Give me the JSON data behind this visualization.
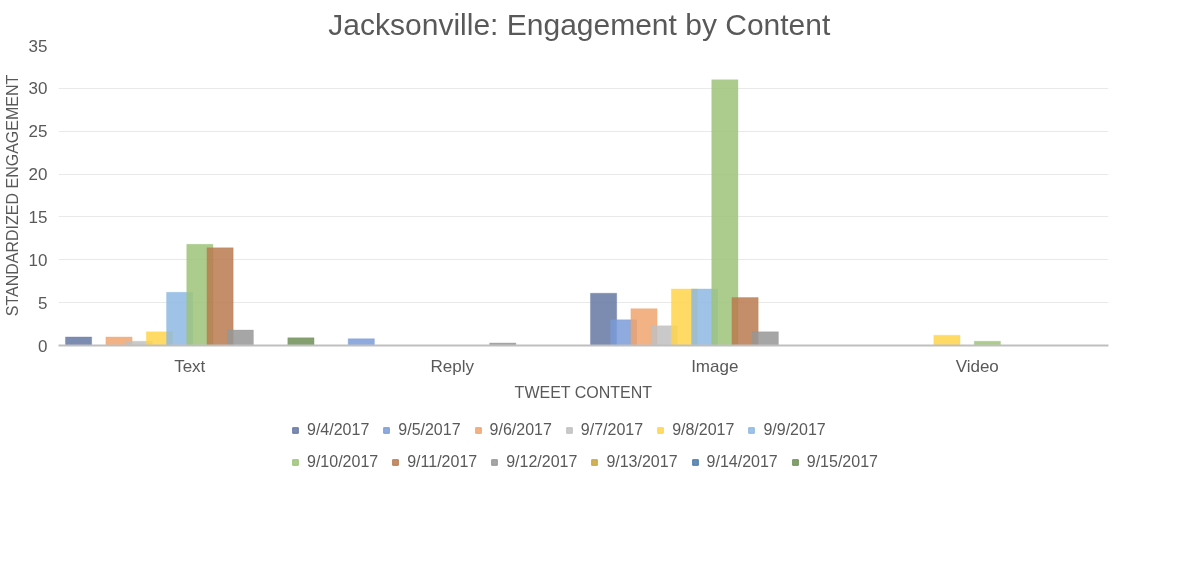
{
  "chart_data": {
    "type": "bar",
    "title": "Jacksonville:  Engagement by Content",
    "xlabel": "TWEET CONTENT",
    "ylabel": "STANDARDIZED ENGAGEMENT",
    "categories": [
      "Text",
      "Reply",
      "Image",
      "Video"
    ],
    "ylim": [
      0,
      35
    ],
    "yticks": [
      0,
      5,
      10,
      15,
      20,
      25,
      30,
      35
    ],
    "grid": "y",
    "legend": "bottom",
    "series": [
      {
        "name": "9/4/2017",
        "color": "#6577a2",
        "values": [
          1.0,
          0,
          6.1,
          0
        ]
      },
      {
        "name": "9/5/2017",
        "color": "#7a9bd8",
        "values": [
          0,
          0.8,
          3.0,
          0
        ]
      },
      {
        "name": "9/6/2017",
        "color": "#f1a46d",
        "values": [
          1.0,
          0,
          4.3,
          0
        ]
      },
      {
        "name": "9/7/2017",
        "color": "#c0c0c0",
        "values": [
          0.5,
          0,
          2.3,
          0
        ]
      },
      {
        "name": "9/8/2017",
        "color": "#ffd54a",
        "values": [
          1.6,
          0,
          6.6,
          1.2
        ]
      },
      {
        "name": "9/9/2017",
        "color": "#8db8e2",
        "values": [
          6.2,
          0,
          6.6,
          0
        ]
      },
      {
        "name": "9/10/2017",
        "color": "#9dc37a",
        "values": [
          11.8,
          0,
          31.0,
          0.5
        ]
      },
      {
        "name": "9/11/2017",
        "color": "#b87a4f",
        "values": [
          11.4,
          0,
          5.6,
          0
        ]
      },
      {
        "name": "9/12/2017",
        "color": "#969696",
        "values": [
          1.8,
          0.3,
          1.6,
          0
        ]
      },
      {
        "name": "9/13/2017",
        "color": "#c9a53a",
        "values": [
          0,
          null,
          0,
          0
        ]
      },
      {
        "name": "9/14/2017",
        "color": "#4b7aa8",
        "values": [
          0,
          0,
          0,
          0
        ]
      },
      {
        "name": "9/15/2017",
        "color": "#6e8f57",
        "values": [
          0.9,
          0,
          0,
          0
        ]
      }
    ]
  }
}
